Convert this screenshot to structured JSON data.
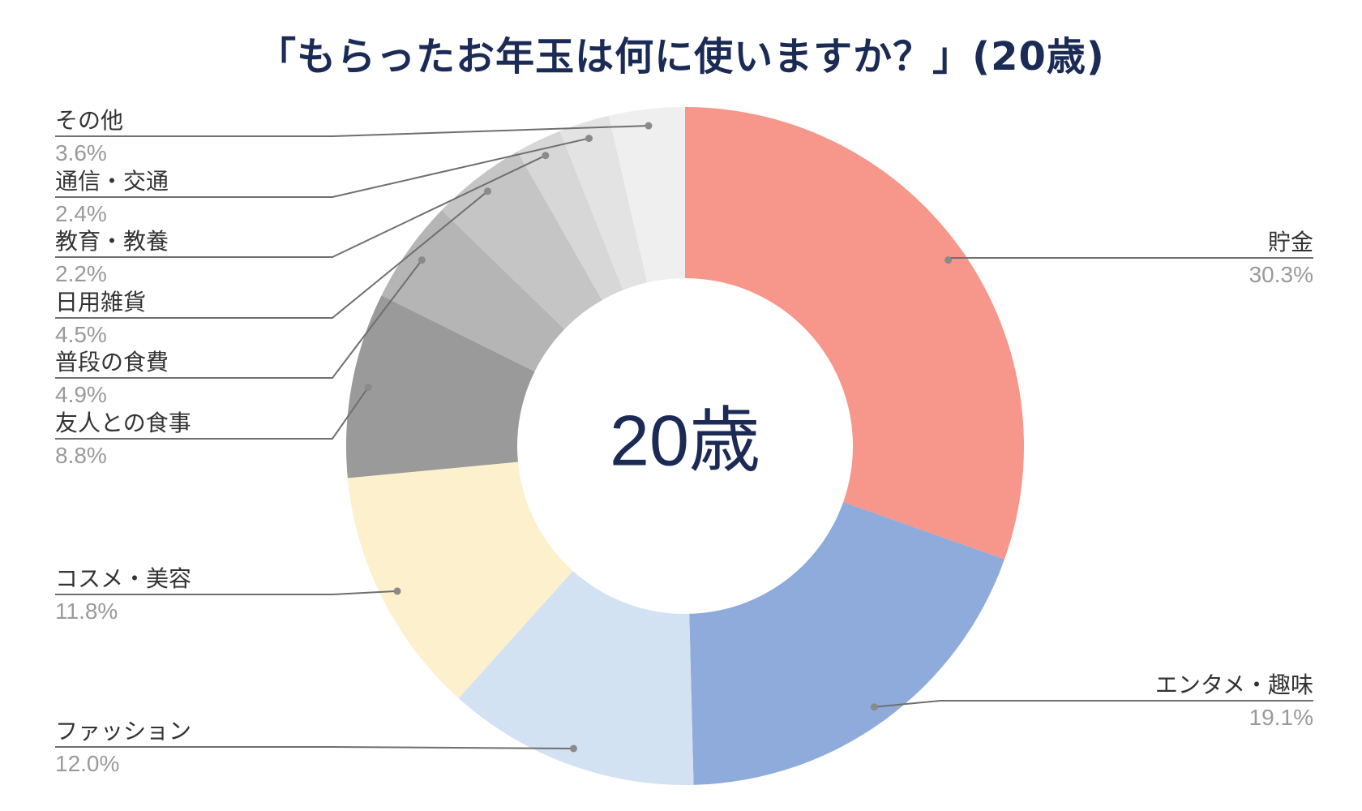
{
  "title": "「もらったお年玉は何に使いますか？」(20歳)",
  "chart_data": {
    "type": "pie",
    "style": "donut",
    "center_label": "20歳",
    "categories": [
      "貯金",
      "エンタメ・趣味",
      "ファッション",
      "コスメ・美容",
      "友人との食事",
      "普段の食費",
      "日用雑貨",
      "教育・教養",
      "通信・交通",
      "その他"
    ],
    "values": [
      30.3,
      19.1,
      12.0,
      11.8,
      8.8,
      4.9,
      4.5,
      2.2,
      2.4,
      3.6
    ],
    "value_labels": [
      "30.3%",
      "19.1%",
      "12.0%",
      "11.8%",
      "8.8%",
      "4.9%",
      "4.5%",
      "2.2%",
      "2.4%",
      "3.6%"
    ],
    "colors": [
      "#f7968a",
      "#8eabdc",
      "#d2e2f3",
      "#fdf0cd",
      "#9a9a9a",
      "#b5b5b5",
      "#c5c5c5",
      "#d7d7d7",
      "#e3e3e3",
      "#efefef"
    ],
    "legend": "none"
  }
}
